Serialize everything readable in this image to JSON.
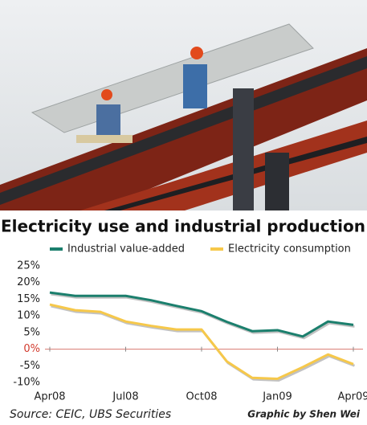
{
  "chart_data": {
    "type": "line",
    "title": "Electricity use and industrial production",
    "categories": [
      "Apr08",
      null,
      null,
      "Jul08",
      null,
      null,
      "Oct08",
      null,
      null,
      "Jan09",
      null,
      null,
      "Apr09"
    ],
    "series": [
      {
        "name": "Industrial value-added",
        "color": "#1b7f6d",
        "values": [
          17,
          16,
          16,
          16,
          14.7,
          13,
          11.4,
          8.2,
          5.4,
          5.7,
          3.8,
          8.3,
          7.3
        ]
      },
      {
        "name": "Electricity consumption",
        "color": "#f6c84a",
        "values": [
          13.4,
          11.7,
          11.2,
          8.3,
          7,
          5.9,
          5.9,
          -3.7,
          -8.6,
          -8.9,
          -5.4,
          -1.6,
          -4.5
        ]
      }
    ],
    "ylim": [
      -10,
      25
    ],
    "yticks": [
      {
        "value": 25,
        "label": "25%"
      },
      {
        "value": 20,
        "label": "20%"
      },
      {
        "value": 15,
        "label": "15%"
      },
      {
        "value": 10,
        "label": "10%"
      },
      {
        "value": 5,
        "label": "5%"
      },
      {
        "value": 0,
        "label": "0%"
      },
      {
        "value": -5,
        "label": "-5%"
      },
      {
        "value": -10,
        "label": "-10%"
      }
    ],
    "source": "Source: CEIC, UBS Securities",
    "credit": "Graphic by Shen Wei"
  }
}
